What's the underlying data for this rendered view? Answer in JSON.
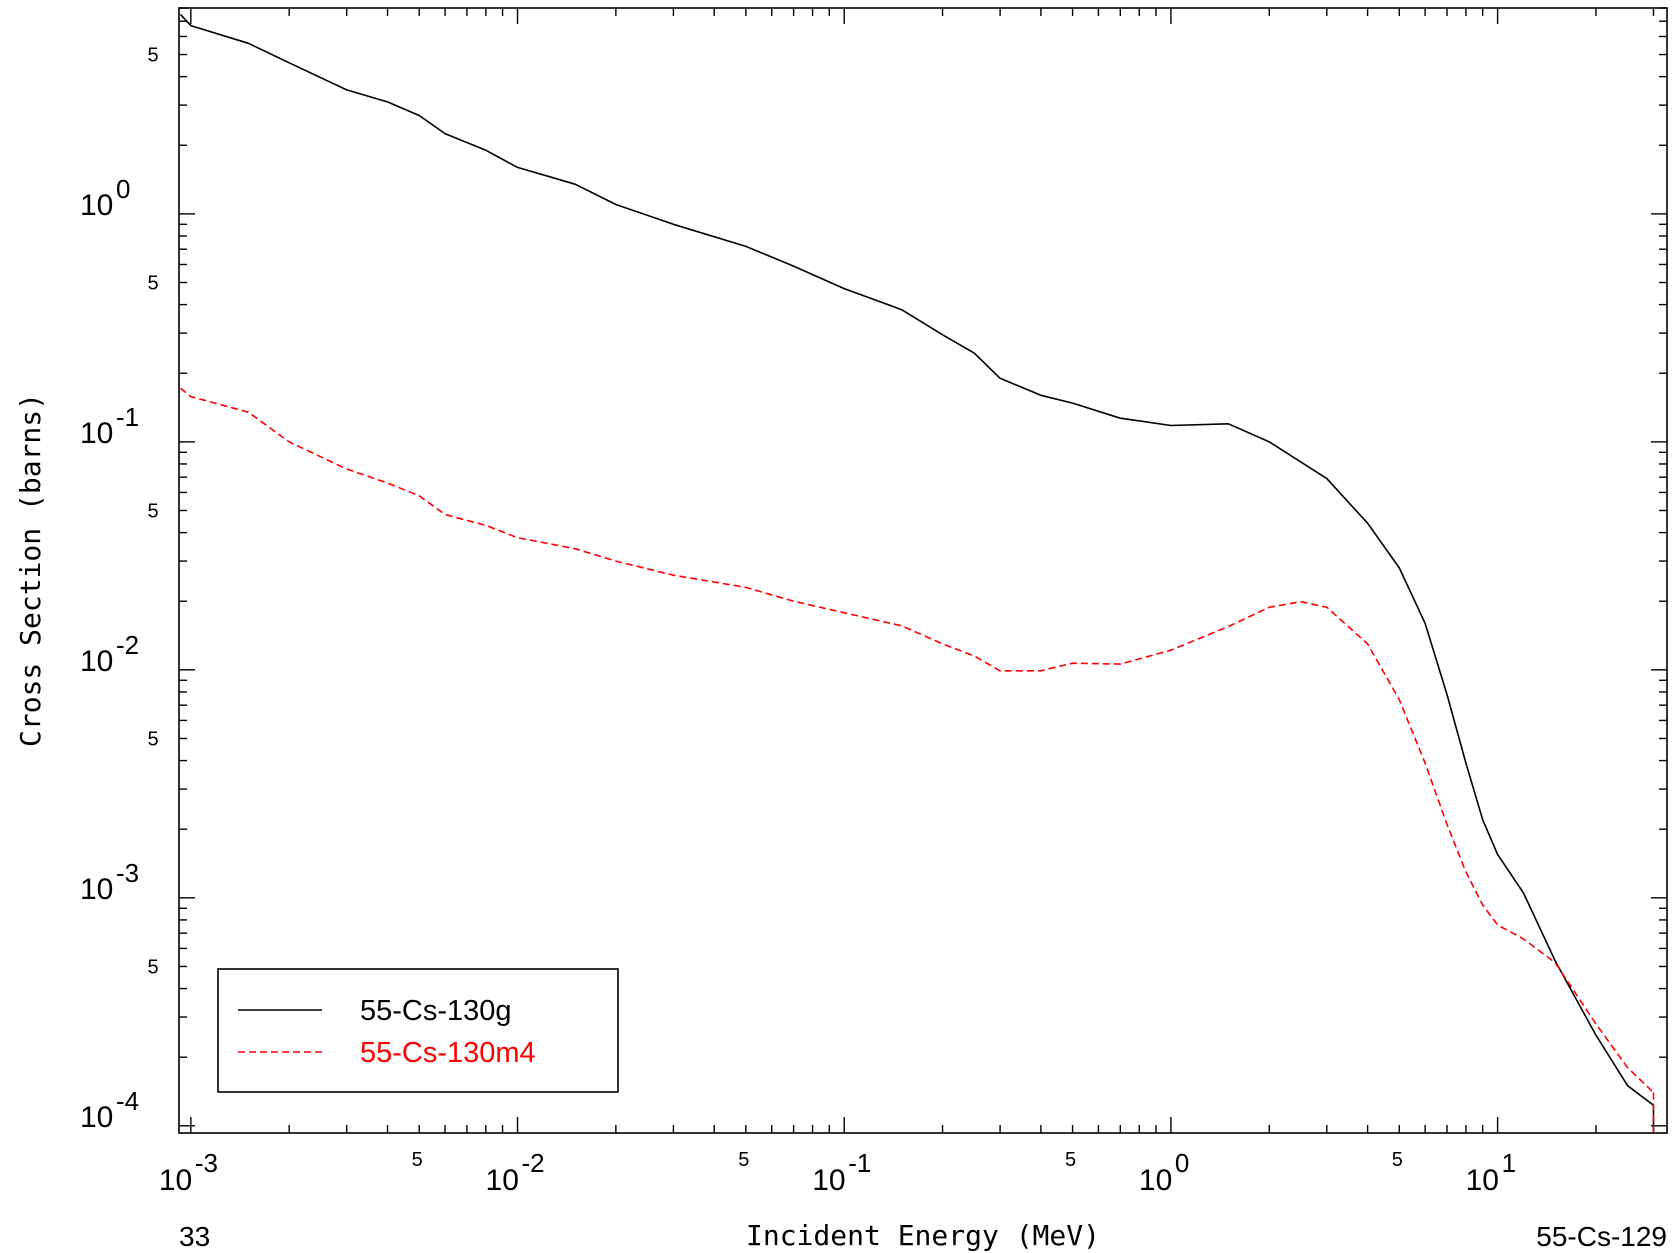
{
  "chart_data": {
    "type": "line",
    "xlabel": "Incident Energy (MeV)",
    "ylabel": "Cross Section (barns)",
    "x_scale": "log",
    "y_scale": "log",
    "xlim": [
      0.00092,
      33
    ],
    "ylim": [
      9.3e-05,
      8
    ],
    "x_ticks": [
      {
        "base": "10",
        "exp": "-3",
        "value": 0.001
      },
      {
        "base": "10",
        "exp": "-2",
        "value": 0.01
      },
      {
        "base": "10",
        "exp": "-1",
        "value": 0.1
      },
      {
        "base": "10",
        "exp": "0",
        "value": 1
      },
      {
        "base": "10",
        "exp": "1",
        "value": 10
      }
    ],
    "x_minor_labels": [
      {
        "label": "5",
        "value": 0.005
      },
      {
        "label": "5",
        "value": 0.05
      },
      {
        "label": "5",
        "value": 0.5
      },
      {
        "label": "5",
        "value": 5
      }
    ],
    "y_ticks": [
      {
        "base": "10",
        "exp": "0",
        "value": 1
      },
      {
        "base": "10",
        "exp": "-1",
        "value": 0.1
      },
      {
        "base": "10",
        "exp": "-2",
        "value": 0.01
      },
      {
        "base": "10",
        "exp": "-3",
        "value": 0.001
      },
      {
        "base": "10",
        "exp": "-4",
        "value": 0.0001
      }
    ],
    "y_minor_labels": [
      {
        "label": "5",
        "value": 5
      },
      {
        "label": "5",
        "value": 0.5
      },
      {
        "label": "5",
        "value": 0.05
      },
      {
        "label": "5",
        "value": 0.005
      },
      {
        "label": "5",
        "value": 0.0005
      }
    ],
    "footer_left": "33",
    "footer_right": "55-Cs-129",
    "legend_position": "bottom-left",
    "grid": false,
    "series": [
      {
        "name": "55-Cs-130g",
        "color": "#000000",
        "dash": "solid",
        "points": [
          [
            0.00093,
            7.5
          ],
          [
            0.001,
            6.7
          ],
          [
            0.0015,
            5.6
          ],
          [
            0.002,
            4.6
          ],
          [
            0.003,
            3.5
          ],
          [
            0.004,
            3.1
          ],
          [
            0.005,
            2.7
          ],
          [
            0.006,
            2.25
          ],
          [
            0.008,
            1.9
          ],
          [
            0.01,
            1.6
          ],
          [
            0.015,
            1.35
          ],
          [
            0.02,
            1.1
          ],
          [
            0.03,
            0.9
          ],
          [
            0.05,
            0.72
          ],
          [
            0.07,
            0.59
          ],
          [
            0.1,
            0.47
          ],
          [
            0.15,
            0.38
          ],
          [
            0.2,
            0.295
          ],
          [
            0.25,
            0.245
          ],
          [
            0.3,
            0.19
          ],
          [
            0.4,
            0.16
          ],
          [
            0.5,
            0.148
          ],
          [
            0.7,
            0.127
          ],
          [
            1.0,
            0.118
          ],
          [
            1.5,
            0.12
          ],
          [
            2.0,
            0.1
          ],
          [
            3.0,
            0.069
          ],
          [
            4.0,
            0.044
          ],
          [
            5.0,
            0.028
          ],
          [
            6.0,
            0.016
          ],
          [
            7.0,
            0.0078
          ],
          [
            8.0,
            0.0039
          ],
          [
            9.0,
            0.0022
          ],
          [
            10,
            0.00155
          ],
          [
            12,
            0.00105
          ],
          [
            15,
            0.00053
          ],
          [
            20,
            0.00025
          ],
          [
            25,
            0.00015
          ],
          [
            30,
            0.000123
          ]
        ]
      },
      {
        "name": "55-Cs-130m4",
        "color": "#ff0000",
        "dash": "dashed",
        "points": [
          [
            0.00093,
            0.172
          ],
          [
            0.001,
            0.158
          ],
          [
            0.0015,
            0.135
          ],
          [
            0.002,
            0.1
          ],
          [
            0.003,
            0.076
          ],
          [
            0.004,
            0.066
          ],
          [
            0.005,
            0.058
          ],
          [
            0.006,
            0.048
          ],
          [
            0.008,
            0.043
          ],
          [
            0.01,
            0.038
          ],
          [
            0.015,
            0.034
          ],
          [
            0.02,
            0.03
          ],
          [
            0.03,
            0.026
          ],
          [
            0.05,
            0.023
          ],
          [
            0.07,
            0.02
          ],
          [
            0.1,
            0.0178
          ],
          [
            0.15,
            0.0156
          ],
          [
            0.2,
            0.013
          ],
          [
            0.25,
            0.0115
          ],
          [
            0.3,
            0.0099
          ],
          [
            0.4,
            0.0099
          ],
          [
            0.5,
            0.0107
          ],
          [
            0.7,
            0.0106
          ],
          [
            1.0,
            0.0122
          ],
          [
            1.5,
            0.0155
          ],
          [
            2.0,
            0.0188
          ],
          [
            2.5,
            0.0199
          ],
          [
            3.0,
            0.0188
          ],
          [
            4.0,
            0.013
          ],
          [
            5.0,
            0.0074
          ],
          [
            6.0,
            0.0039
          ],
          [
            7.0,
            0.0021
          ],
          [
            8.0,
            0.0013
          ],
          [
            9.0,
            0.00093
          ],
          [
            10,
            0.00076
          ],
          [
            12,
            0.00066
          ],
          [
            15,
            0.00052
          ],
          [
            20,
            0.00028
          ],
          [
            25,
            0.00018
          ],
          [
            30,
            0.00014
          ]
        ]
      }
    ]
  }
}
